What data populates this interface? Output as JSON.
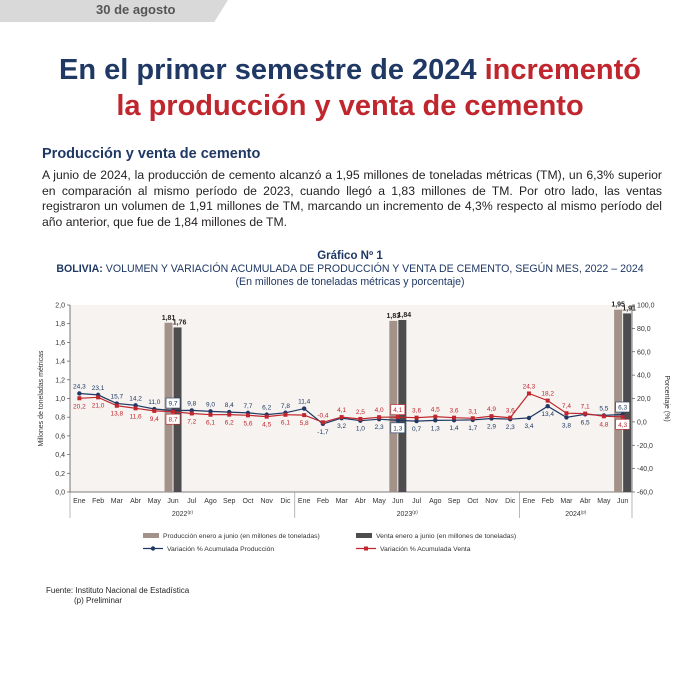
{
  "header": {
    "date": "30 de agosto"
  },
  "title": {
    "part1": "En el primer semestre de 2024 ",
    "part2": "incrementó",
    "part3": "la producción y venta de cemento"
  },
  "section": {
    "heading": "Producción y venta de cemento",
    "paragraph": "A junio de 2024, la producción de cemento alcanzó a 1,95 millones de toneladas métricas (TM), un 6,3% superior en comparación al mismo período de 2023, cuando llegó a 1,83 millones de TM. Por otro lado, las ventas registraron un volumen de 1,91 millones de TM, marcando un incremento de 4,3% respecto al mismo período del año anterior, que fue de 1,84 millones de TM."
  },
  "chart_data": {
    "type": "bar+line",
    "number": "Gráfico Nº 1",
    "title_lead": "BOLIVIA:",
    "title": "VOLUMEN Y VARIACIÓN ACUMULADA DE PRODUCCIÓN Y VENTA DE CEMENTO, SEGÚN MES, 2022 – 2024",
    "subtitle": "(En millones de toneladas métricas y porcentaje)",
    "categories": [
      "Ene",
      "Feb",
      "Mar",
      "Abr",
      "May",
      "Jun",
      "Jul",
      "Ago",
      "Sep",
      "Oct",
      "Nov",
      "Dic",
      "Ene",
      "Feb",
      "Mar",
      "Abr",
      "May",
      "Jun",
      "Jul",
      "Ago",
      "Sep",
      "Oct",
      "Nov",
      "Dic",
      "Ene",
      "Feb",
      "Mar",
      "Abr",
      "May",
      "Jun"
    ],
    "year_groups": [
      {
        "label": "2022",
        "sup": "(p)",
        "from": 0,
        "to": 11
      },
      {
        "label": "2023",
        "sup": "(p)",
        "from": 12,
        "to": 23
      },
      {
        "label": "2024",
        "sup": "(p)",
        "from": 24,
        "to": 29
      }
    ],
    "ylabel_left": "Millones de toneladas métricas",
    "ylabel_right": "Porcentaje (%)",
    "ylim_left": [
      0,
      2.0
    ],
    "left_ticks": [
      "0,0",
      "0,2",
      "0,4",
      "0,6",
      "0,8",
      "1,0",
      "1,2",
      "1,4",
      "1,6",
      "1,8",
      "2,0"
    ],
    "ylim_right": [
      -60,
      100
    ],
    "right_ticks": [
      "-60,0",
      "-40,0",
      "-20,0",
      "0,0",
      "20,0",
      "40,0",
      "60,0",
      "80,0",
      "100,0"
    ],
    "bars": [
      {
        "index": 5,
        "production": 1.81,
        "sales": 1.76,
        "prod_label": "1,81",
        "sales_label": "1,76"
      },
      {
        "index": 17,
        "production": 1.83,
        "sales": 1.84,
        "prod_label": "1,83",
        "sales_label": "1,84"
      },
      {
        "index": 29,
        "production": 1.95,
        "sales": 1.91,
        "prod_label": "1,95",
        "sales_label": "1,91"
      }
    ],
    "series": [
      {
        "name": "Variación % Acumulada Producción",
        "color": "#1f3864",
        "values": [
          24.3,
          23.1,
          15.7,
          14.2,
          11.0,
          9.7,
          9.8,
          9.0,
          8.4,
          7.7,
          6.2,
          7.8,
          11.4,
          -1.7,
          3.2,
          1.0,
          2.3,
          1.3,
          0.7,
          1.3,
          1.4,
          1.7,
          2.9,
          2.3,
          3.4,
          13.4,
          3.8,
          6.5,
          5.5,
          6.3
        ],
        "labels": [
          "24,3",
          "23,1",
          "15,7",
          "14,2",
          "11,0",
          "9,7",
          "9,8",
          "9,0",
          "8,4",
          "7,7",
          "6,2",
          "7,8",
          "11,4",
          "-1,7",
          "3,2",
          "1,0",
          "2,3",
          "1,3",
          "0,7",
          "1,3",
          "1,4",
          "1,7",
          "2,9",
          "2,3",
          "3,4",
          "13,4",
          "3,8",
          "6,5",
          "5,5",
          "6,3"
        ]
      },
      {
        "name": "Variación % Acumulada Venta",
        "color": "#c0262d",
        "values": [
          20.2,
          21.0,
          13.8,
          11.6,
          9.4,
          8.7,
          7.2,
          6.1,
          6.2,
          5.6,
          4.5,
          6.1,
          5.8,
          -0.4,
          4.1,
          2.5,
          4.0,
          4.1,
          3.6,
          4.5,
          3.6,
          3.1,
          4.9,
          3.6,
          24.3,
          18.2,
          7.4,
          7.1,
          4.8,
          4.3
        ],
        "labels": [
          "20,2",
          "21,0",
          "13,8",
          "11,6",
          "9,4",
          "8,7",
          "7,2",
          "6,1",
          "6,2",
          "5,6",
          "4,5",
          "6,1",
          "5,8",
          "-0,4",
          "4,1",
          "2,5",
          "4,0",
          "4,1",
          "3,6",
          "4,5",
          "3,6",
          "3,1",
          "4,9",
          "3,6",
          "24,3",
          "18,2",
          "7,4",
          "7,1",
          "4,8",
          "4,3"
        ]
      }
    ],
    "legend": {
      "production_bar": "Producción enero a junio (en millones de toneladas)",
      "sales_bar": "Venta enero a junio (en millones de toneladas)",
      "production_line": "Variación % Acumulada Producción",
      "sales_line": "Variación % Acumulada Venta"
    },
    "colors": {
      "production_bar": "#a39289",
      "sales_bar": "#4d4d4f",
      "production_line": "#1f3864",
      "sales_line": "#c0262d"
    }
  },
  "source": {
    "line1": "Fuente: Instituto Nacional de Estadística",
    "line2": "(p) Preliminar"
  }
}
